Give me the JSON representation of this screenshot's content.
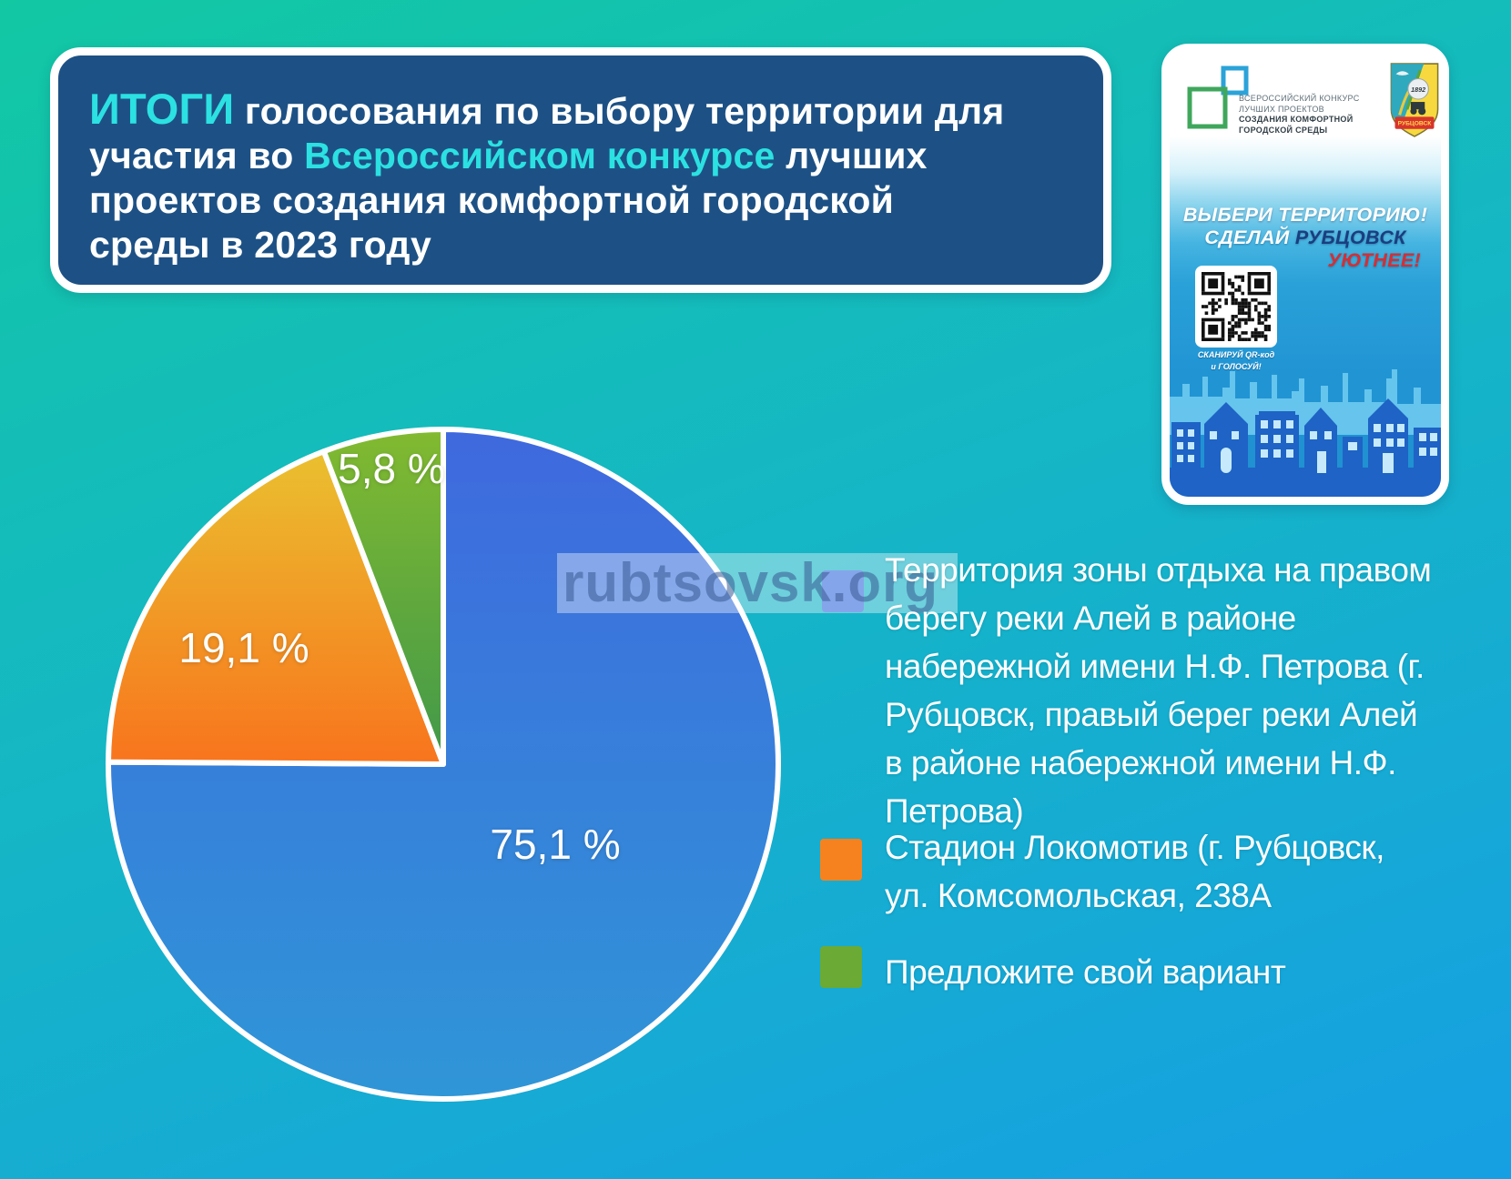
{
  "colors": {
    "background_top": "#12c8a3",
    "background_bottom": "#169fe3",
    "title_box_bg": "#1d5185",
    "accent_cyan": "#2be1e2",
    "headline_navy": "#1a3e80",
    "headline_red": "#d32f35",
    "poster_house_blue": "#1e63c5",
    "poster_skyline_blue": "#6ecaf0"
  },
  "title": {
    "line1_accent": "ИТОГИ",
    "line1_rest": " голосования по выбору территории для",
    "line2_pre": "участия во ",
    "line2_accent": "Всероссийском конкурсе",
    "line2_post": " лучших",
    "line3": "проектов создания комфортной городской",
    "line4": "среды в 2023 году"
  },
  "watermark": {
    "text": "rubtsovsk.org"
  },
  "poster": {
    "logo_lines": [
      "ВСЕРОССИЙСКИЙ КОНКУРС",
      "ЛУЧШИХ ПРОЕКТОВ",
      "СОЗДАНИЯ КОМФОРТНОЙ",
      "ГОРОДСКОЙ СРЕДЫ"
    ],
    "headline_line1": "ВЫБЕРИ ТЕРРИТОРИЮ!",
    "headline_line2_white": "СДЕЛАЙ ",
    "headline_line2_navy": "РУБЦОВСК",
    "headline_line3": "УЮТНЕЕ!",
    "qr_caption": [
      "СКАНИРУЙ QR-код",
      "и ГОЛОСУЙ!"
    ],
    "arms_year": "1892",
    "arms_city": "РУБЦОВСК"
  },
  "chart_data": {
    "type": "pie",
    "title": "Итоги голосования по выбору территории для участия во Всероссийском конкурсе лучших проектов создания комфортной городской среды в 2023 году",
    "legend_position": "right",
    "slices": [
      {
        "label": "75,1 %",
        "value": 75.1,
        "color": "#3b6fdd",
        "gradient": [
          "#3f69de",
          "#2f96d7"
        ],
        "category": "Территория зоны отдыха на правом берегу реки Алей в районе набережной имени Н.Ф. Петрова (г. Рубцовск, правый берег реки Алей в районе набережной имени Н.Ф. Петрова)"
      },
      {
        "label": "19,1 %",
        "value": 19.1,
        "color": "#f5821f",
        "gradient": [
          "#eac02f",
          "#f8741d"
        ],
        "category": "Стадион Локомотив (г. Рубцовск, ул. Комсомольская, 238А"
      },
      {
        "label": "5,8 %",
        "value": 5.8,
        "color": "#6aaa35",
        "gradient": [
          "#82ba30",
          "#41984a"
        ],
        "category": "Предложите свой вариант"
      }
    ]
  },
  "legend": {
    "item1_lines": [
      "Территория зоны отдыха на правом",
      "берегу реки Алей в районе",
      "набережной имени Н.Ф. Петрова (г.",
      "Рубцовск, правый берег реки Алей",
      "в районе набережной имени Н.Ф.",
      "Петрова)"
    ],
    "item2_lines": [
      "Стадион Локомотив (г. Рубцовск,",
      "ул. Комсомольская, 238А"
    ],
    "item3_lines": [
      "Предложите свой вариант"
    ]
  }
}
